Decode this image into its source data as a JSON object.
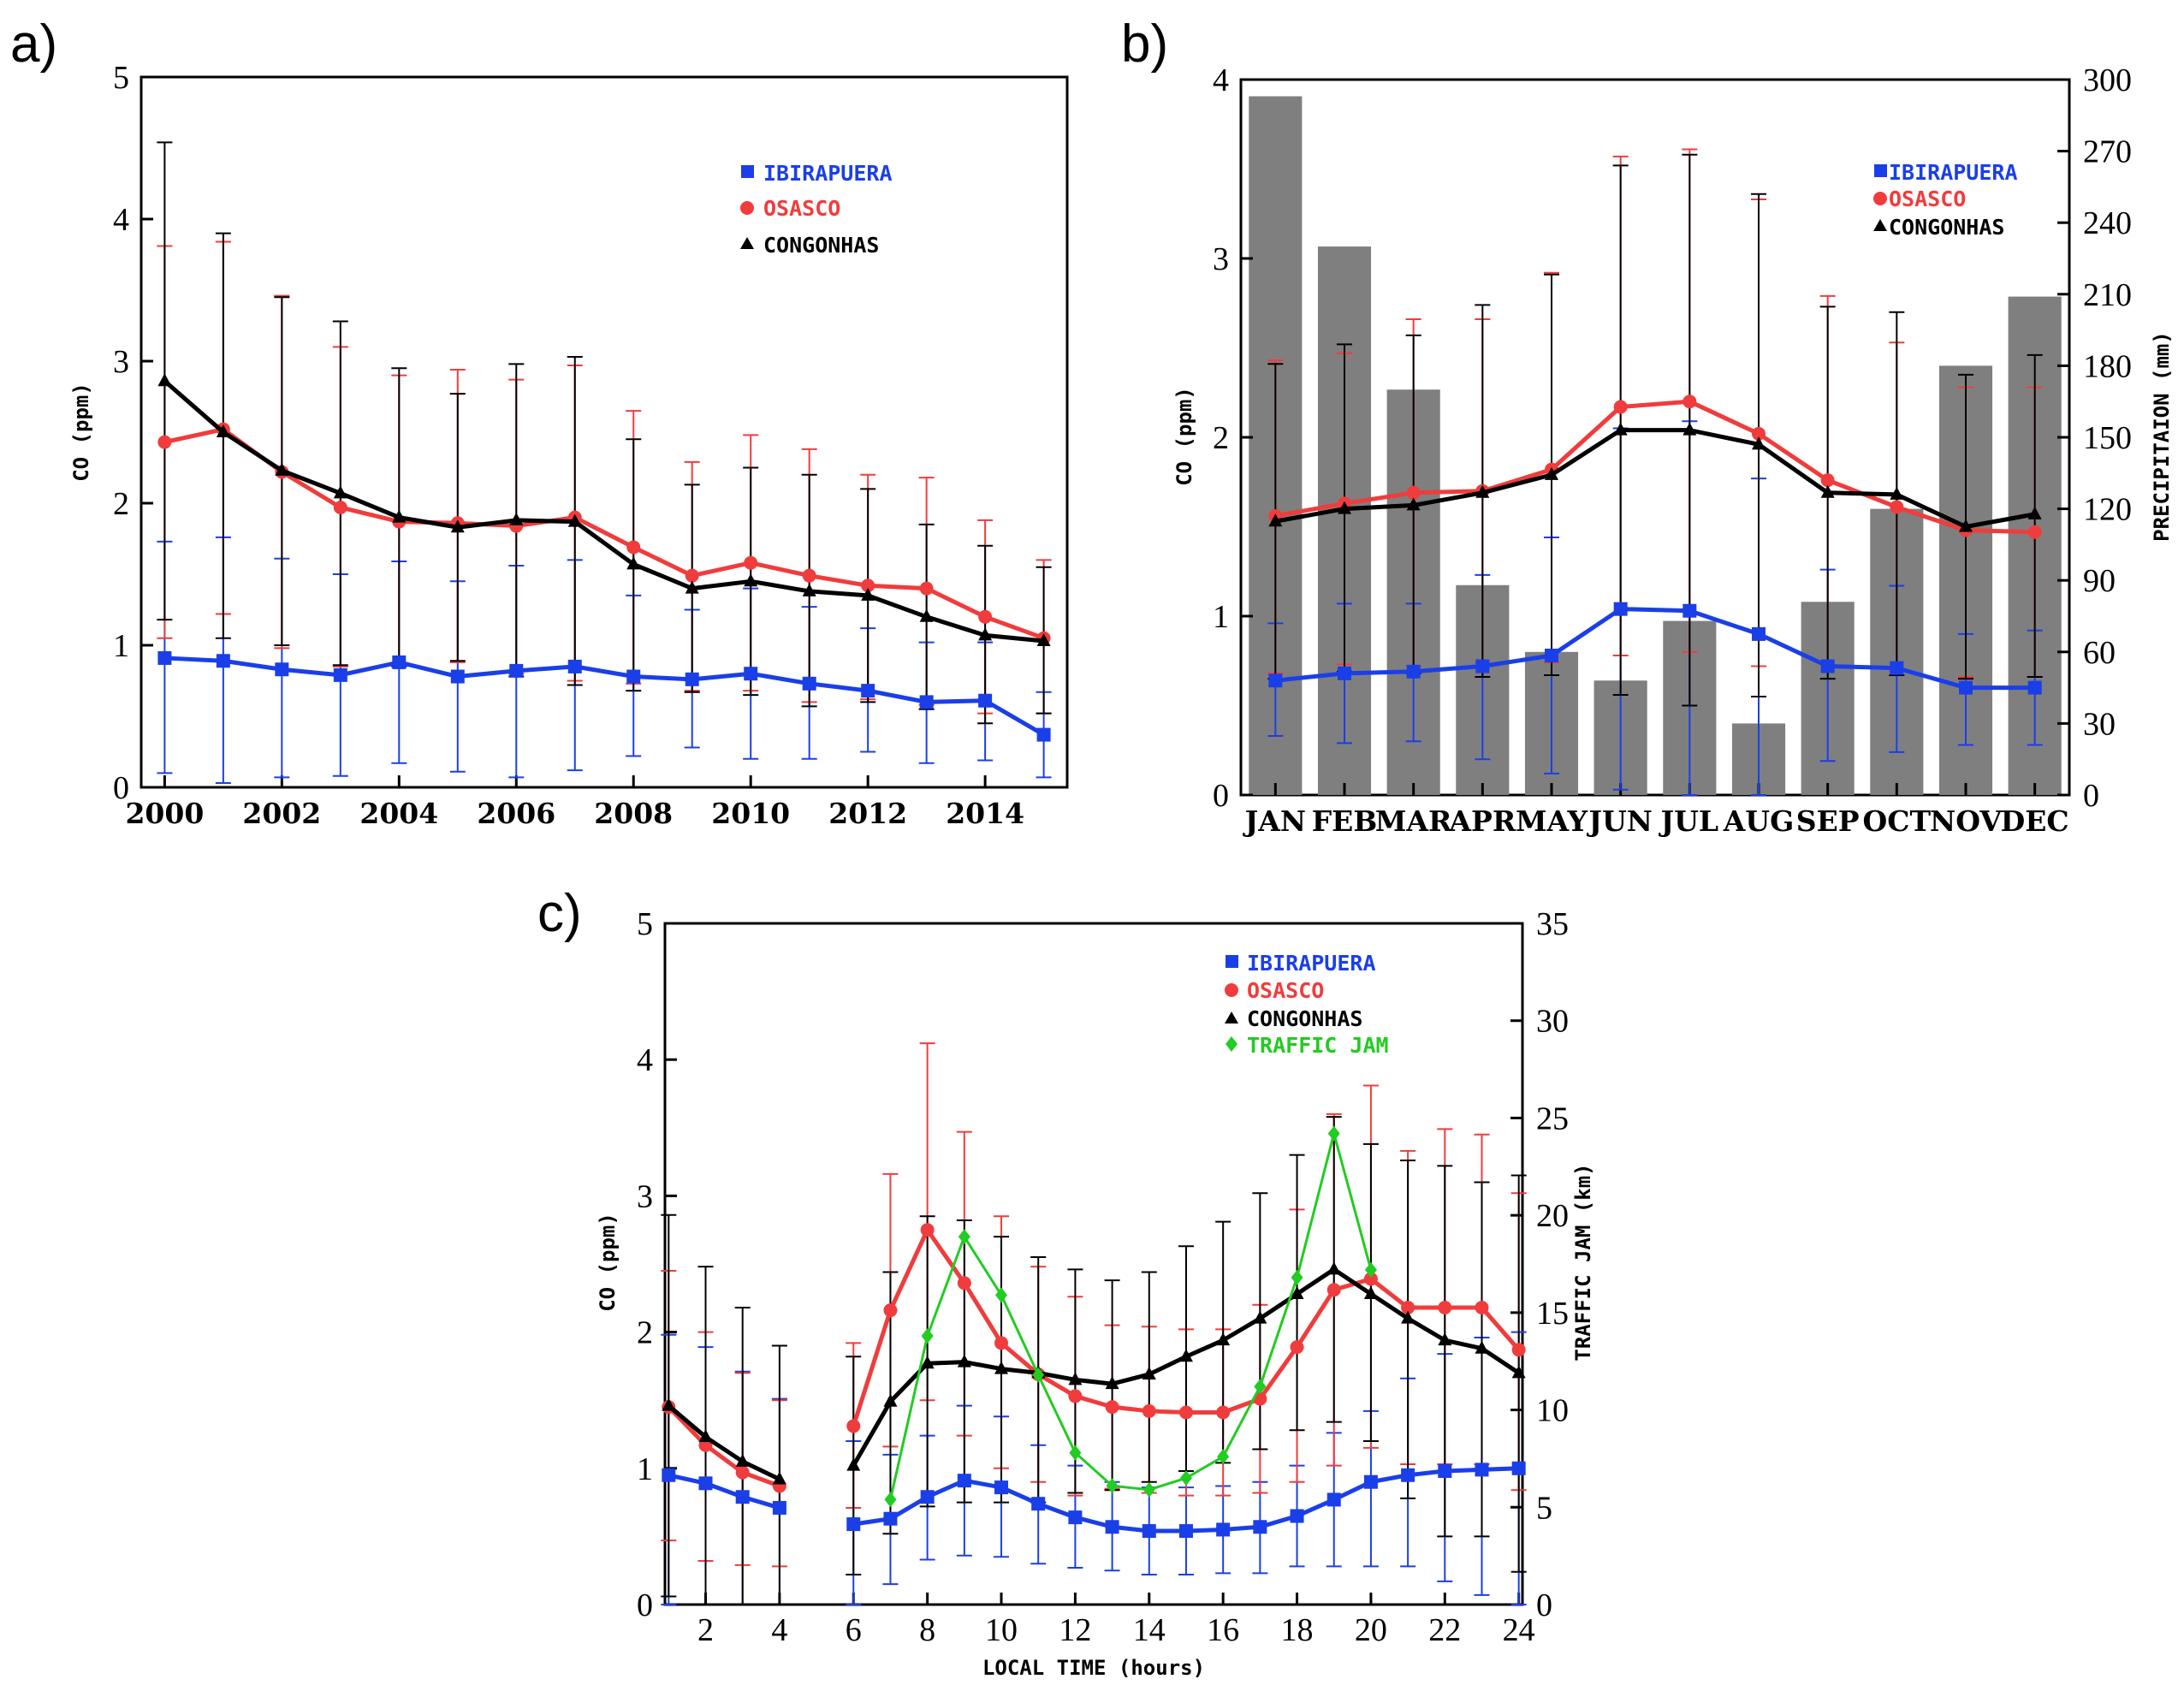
{
  "colors": {
    "ibirapuera": "#1a3fe8",
    "osasco": "#f03c3c",
    "congonhas": "#000000",
    "traffic": "#22cc22",
    "precip": "#7f7f7f"
  },
  "chart_data": [
    {
      "type": "line",
      "panel_label": "a)",
      "ylabel": "CO (ppm)",
      "xlim": [
        1999.6,
        2015.4
      ],
      "ylim": [
        0,
        5
      ],
      "xticks": [
        2000,
        2002,
        2004,
        2006,
        2008,
        2010,
        2012,
        2014
      ],
      "xtick_labels": [
        "2000",
        "2002",
        "2004",
        "2006",
        "2008",
        "2010",
        "2012",
        "2014"
      ],
      "yticks": [
        0,
        1,
        2,
        3,
        4,
        5
      ],
      "ytick_labels": [
        "0",
        "1",
        "2",
        "3",
        "4",
        "5"
      ],
      "x": [
        2000,
        2001,
        2002,
        2003,
        2004,
        2005,
        2006,
        2007,
        2008,
        2009,
        2010,
        2011,
        2012,
        2013,
        2014,
        2015
      ],
      "series": [
        {
          "key": "ibirapuera",
          "name": "IBIRAPUERA",
          "marker": "square",
          "values": [
            0.91,
            0.89,
            0.83,
            0.79,
            0.88,
            0.78,
            0.82,
            0.85,
            0.78,
            0.76,
            0.8,
            0.73,
            0.68,
            0.6,
            0.61,
            0.37
          ],
          "err_low": [
            0.1,
            0.03,
            0.07,
            0.08,
            0.17,
            0.11,
            0.07,
            0.12,
            0.22,
            0.28,
            0.2,
            0.2,
            0.25,
            0.17,
            0.19,
            0.07
          ],
          "err_high": [
            1.73,
            1.76,
            1.61,
            1.5,
            1.59,
            1.45,
            1.56,
            1.6,
            1.35,
            1.25,
            1.4,
            1.27,
            1.12,
            1.02,
            1.02,
            0.67
          ]
        },
        {
          "key": "osasco",
          "name": "OSASCO",
          "marker": "circle",
          "values": [
            2.43,
            2.52,
            2.22,
            1.97,
            1.87,
            1.86,
            1.84,
            1.9,
            1.69,
            1.49,
            1.58,
            1.49,
            1.42,
            1.4,
            1.2,
            1.05
          ],
          "err_low": [
            1.05,
            1.22,
            0.98,
            0.85,
            0.87,
            0.88,
            0.8,
            0.75,
            0.73,
            0.68,
            0.68,
            0.6,
            0.62,
            0.58,
            0.52,
            0.52
          ],
          "err_high": [
            3.81,
            3.84,
            3.46,
            3.1,
            2.9,
            2.94,
            2.87,
            2.97,
            2.65,
            2.29,
            2.48,
            2.38,
            2.2,
            2.18,
            1.88,
            1.6
          ]
        },
        {
          "key": "congonhas",
          "name": "CONGONHAS",
          "marker": "triangle",
          "values": [
            2.86,
            2.5,
            2.23,
            2.07,
            1.9,
            1.83,
            1.88,
            1.87,
            1.57,
            1.4,
            1.45,
            1.38,
            1.35,
            1.2,
            1.07,
            1.03
          ],
          "err_low": [
            1.18,
            1.05,
            1.0,
            0.86,
            0.85,
            0.89,
            0.78,
            0.72,
            0.68,
            0.67,
            0.65,
            0.57,
            0.6,
            0.55,
            0.45,
            0.52
          ],
          "err_high": [
            4.54,
            3.9,
            3.45,
            3.28,
            2.95,
            2.77,
            2.98,
            3.03,
            2.45,
            2.13,
            2.25,
            2.2,
            2.1,
            1.85,
            1.7,
            1.55
          ]
        }
      ]
    },
    {
      "type": "line+bar",
      "panel_label": "b)",
      "ylabel": "CO (ppm)",
      "y2label": "PRECIPITAION (mm)",
      "ylim": [
        0,
        4
      ],
      "y2lim": [
        0,
        300
      ],
      "categories": [
        "JAN",
        "FEB",
        "MAR",
        "APR",
        "MAY",
        "JUN",
        "JUL",
        "AUG",
        "SEP",
        "OCT",
        "NOV",
        "DEC"
      ],
      "yticks": [
        0,
        1,
        2,
        3,
        4
      ],
      "ytick_labels": [
        "0",
        "1",
        "2",
        "3",
        "4"
      ],
      "y2ticks": [
        0,
        30,
        60,
        90,
        120,
        150,
        180,
        210,
        240,
        270,
        300
      ],
      "y2tick_labels": [
        "0",
        "30",
        "60",
        "90",
        "120",
        "150",
        "180",
        "210",
        "240",
        "270",
        "300"
      ],
      "precipitation": [
        293,
        230,
        170,
        88,
        60,
        48,
        73,
        30,
        81,
        120,
        180,
        209
      ],
      "series": [
        {
          "key": "ibirapuera",
          "name": "IBIRAPUERA",
          "marker": "square",
          "values": [
            0.64,
            0.68,
            0.69,
            0.72,
            0.78,
            1.04,
            1.03,
            0.9,
            0.72,
            0.71,
            0.6,
            0.6
          ],
          "err_low": [
            0.33,
            0.29,
            0.3,
            0.2,
            0.12,
            0.03,
            0.0,
            0.0,
            0.19,
            0.24,
            0.28,
            0.28
          ],
          "err_high": [
            0.96,
            1.07,
            1.07,
            1.23,
            1.44,
            2.05,
            2.09,
            1.77,
            1.26,
            1.17,
            0.9,
            0.92
          ]
        },
        {
          "key": "osasco",
          "name": "OSASCO",
          "marker": "circle",
          "values": [
            1.56,
            1.63,
            1.69,
            1.7,
            1.82,
            2.17,
            2.2,
            2.02,
            1.76,
            1.61,
            1.48,
            1.47
          ],
          "err_low": [
            0.68,
            0.73,
            0.72,
            0.74,
            0.74,
            0.78,
            0.8,
            0.72,
            0.73,
            0.69,
            0.66,
            0.66
          ],
          "err_high": [
            2.43,
            2.47,
            2.66,
            2.66,
            2.92,
            3.57,
            3.61,
            3.33,
            2.79,
            2.53,
            2.28,
            2.28
          ]
        },
        {
          "key": "congonhas",
          "name": "CONGONHAS",
          "marker": "triangle",
          "values": [
            1.53,
            1.6,
            1.62,
            1.69,
            1.79,
            2.04,
            2.04,
            1.96,
            1.69,
            1.68,
            1.5,
            1.57
          ],
          "err_low": [
            0.65,
            0.69,
            0.68,
            0.66,
            0.67,
            0.56,
            0.5,
            0.55,
            0.65,
            0.67,
            0.65,
            0.66
          ],
          "err_high": [
            2.41,
            2.52,
            2.57,
            2.74,
            2.91,
            3.52,
            3.58,
            3.36,
            2.73,
            2.7,
            2.35,
            2.46
          ]
        }
      ]
    },
    {
      "type": "line",
      "panel_label": "c)",
      "ylabel": "CO (ppm)",
      "y2label": "TRAFFIC JAM (km)",
      "xlabel": "LOCAL TIME (hours)",
      "xlim": [
        0.9,
        24.1
      ],
      "ylim": [
        0,
        5
      ],
      "y2lim": [
        0,
        35
      ],
      "xticks": [
        2,
        4,
        6,
        8,
        10,
        12,
        14,
        16,
        18,
        20,
        22,
        24
      ],
      "xtick_labels": [
        "2",
        "4",
        "6",
        "8",
        "10",
        "12",
        "14",
        "16",
        "18",
        "20",
        "22",
        "24"
      ],
      "yticks": [
        0,
        1,
        2,
        3,
        4,
        5
      ],
      "ytick_labels": [
        "0",
        "1",
        "2",
        "3",
        "4",
        "5"
      ],
      "y2ticks": [
        0,
        5,
        10,
        15,
        20,
        25,
        30,
        35
      ],
      "y2tick_labels": [
        "0",
        "5",
        "10",
        "15",
        "20",
        "25",
        "30",
        "35"
      ],
      "x": [
        1,
        2,
        3,
        4,
        6,
        7,
        8,
        9,
        10,
        11,
        12,
        13,
        14,
        15,
        16,
        17,
        18,
        19,
        20,
        21,
        22,
        23,
        24
      ],
      "series": [
        {
          "key": "ibirapuera",
          "name": "IBIRAPUERA",
          "marker": "square",
          "values": [
            0.95,
            0.89,
            0.79,
            0.71,
            0.59,
            0.63,
            0.79,
            0.91,
            0.86,
            0.74,
            0.64,
            0.57,
            0.54,
            0.54,
            0.55,
            0.57,
            0.65,
            0.77,
            0.9,
            0.95,
            0.98,
            0.99,
            1.0
          ],
          "err_low": [
            0.0,
            0.0,
            0.0,
            0.0,
            0.0,
            0.15,
            0.33,
            0.36,
            0.35,
            0.3,
            0.27,
            0.25,
            0.22,
            0.22,
            0.23,
            0.23,
            0.28,
            0.28,
            0.28,
            0.28,
            0.17,
            0.07,
            0.0
          ],
          "err_high": [
            1.98,
            1.89,
            1.71,
            1.51,
            1.2,
            1.1,
            1.24,
            1.46,
            1.38,
            1.17,
            1.02,
            0.9,
            0.86,
            0.86,
            0.87,
            0.9,
            1.02,
            1.26,
            1.42,
            1.66,
            1.84,
            1.96,
            2.0
          ]
        },
        {
          "key": "osasco",
          "name": "OSASCO",
          "marker": "circle",
          "values": [
            1.45,
            1.17,
            0.97,
            0.87,
            1.31,
            2.16,
            2.75,
            2.36,
            1.92,
            1.69,
            1.53,
            1.45,
            1.42,
            1.41,
            1.41,
            1.51,
            1.89,
            2.31,
            2.39,
            2.18,
            2.18,
            2.18,
            1.87
          ],
          "err_low": [
            0.47,
            0.32,
            0.29,
            0.28,
            0.71,
            1.16,
            1.5,
            1.24,
            1.0,
            0.9,
            0.8,
            0.85,
            0.82,
            0.8,
            0.8,
            0.82,
            0.9,
            1.02,
            1.15,
            1.03,
            1.03,
            1.03,
            0.84
          ],
          "err_high": [
            2.45,
            2.0,
            1.7,
            1.5,
            1.92,
            3.16,
            4.12,
            3.47,
            2.85,
            2.48,
            2.26,
            2.05,
            2.04,
            2.02,
            2.02,
            2.2,
            2.9,
            3.6,
            3.81,
            3.33,
            3.49,
            3.45,
            3.02
          ]
        },
        {
          "key": "congonhas",
          "name": "CONGONHAS",
          "marker": "triangle",
          "values": [
            1.46,
            1.23,
            1.05,
            0.92,
            1.02,
            1.49,
            1.77,
            1.78,
            1.73,
            1.7,
            1.65,
            1.62,
            1.69,
            1.82,
            1.94,
            2.1,
            2.28,
            2.46,
            2.28,
            2.1,
            1.94,
            1.88,
            1.7
          ],
          "err_low": [
            0.06,
            0.0,
            0.0,
            0.0,
            0.22,
            0.52,
            0.72,
            0.75,
            0.75,
            0.75,
            0.82,
            0.84,
            0.9,
            0.98,
            1.04,
            1.14,
            1.28,
            1.34,
            1.2,
            0.78,
            0.5,
            0.5,
            0.24
          ],
          "err_high": [
            2.86,
            2.48,
            2.18,
            1.9,
            1.82,
            2.44,
            2.85,
            2.82,
            2.7,
            2.55,
            2.46,
            2.38,
            2.44,
            2.63,
            2.81,
            3.02,
            3.3,
            3.58,
            3.38,
            3.26,
            3.22,
            3.1,
            3.15
          ]
        },
        {
          "key": "traffic",
          "name": "TRAFFIC JAM",
          "marker": "diamond",
          "axis": "y2",
          "x": [
            7,
            8,
            9,
            10,
            11,
            12,
            13,
            14,
            15,
            16,
            17,
            18,
            19,
            20
          ],
          "values": [
            5.4,
            13.8,
            18.9,
            15.9,
            11.8,
            7.8,
            6.1,
            5.9,
            6.5,
            7.6,
            11.2,
            16.8,
            24.2,
            17.2
          ]
        }
      ]
    }
  ]
}
